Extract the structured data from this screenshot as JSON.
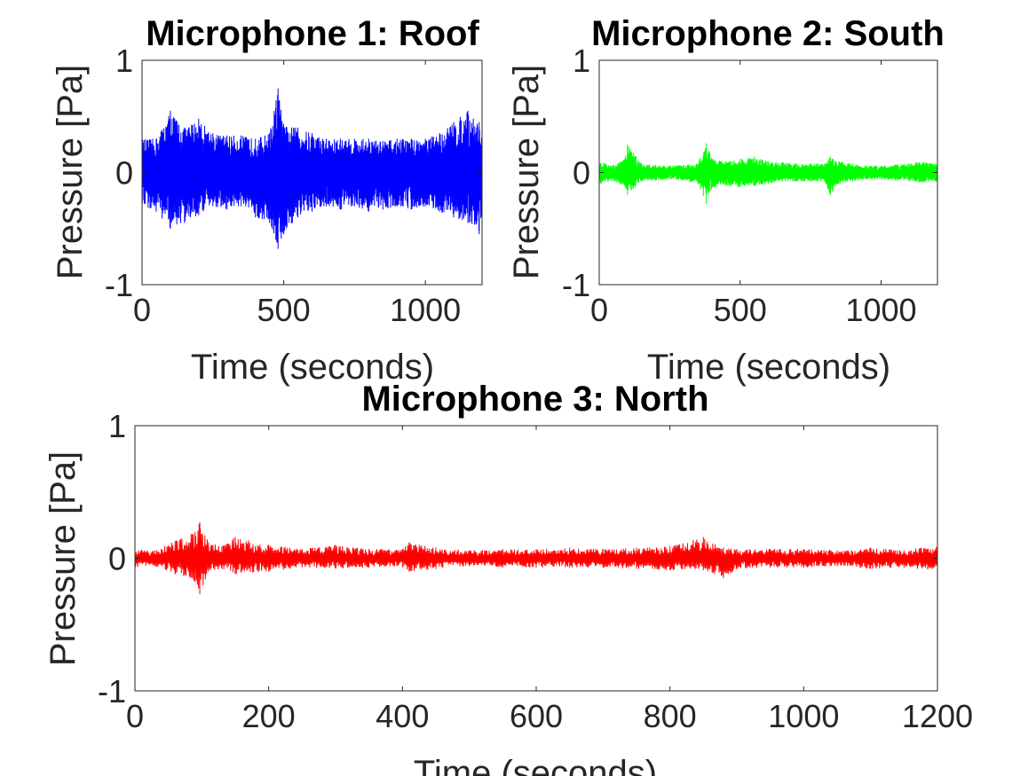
{
  "chart_data": [
    {
      "type": "line",
      "title": "Microphone 1: Roof",
      "xlabel": "Time (seconds)",
      "ylabel": "Pressure [Pa]",
      "xlim": [
        0,
        1200
      ],
      "ylim": [
        -1,
        1
      ],
      "xticks": [
        0,
        500,
        1000
      ],
      "yticks": [
        -1,
        0,
        1
      ],
      "xtick_labels": [
        "0",
        "500",
        "1000"
      ],
      "ytick_labels": [
        "-1",
        "0",
        "1"
      ],
      "color": "#0000ff",
      "series": [
        {
          "x": [
            0,
            50,
            100,
            150,
            200,
            250,
            300,
            350,
            400,
            450,
            480,
            500,
            550,
            600,
            650,
            700,
            750,
            800,
            850,
            900,
            950,
            1000,
            1050,
            1100,
            1150,
            1190,
            1200
          ],
          "y_upper": [
            0.3,
            0.3,
            0.55,
            0.4,
            0.48,
            0.35,
            0.33,
            0.33,
            0.3,
            0.35,
            0.75,
            0.42,
            0.4,
            0.35,
            0.3,
            0.3,
            0.3,
            0.3,
            0.28,
            0.3,
            0.3,
            0.3,
            0.35,
            0.45,
            0.55,
            0.45,
            0.4
          ],
          "y_lower": [
            -0.3,
            -0.35,
            -0.5,
            -0.45,
            -0.38,
            -0.3,
            -0.33,
            -0.3,
            -0.4,
            -0.45,
            -0.68,
            -0.55,
            -0.4,
            -0.35,
            -0.3,
            -0.33,
            -0.3,
            -0.35,
            -0.33,
            -0.3,
            -0.33,
            -0.3,
            -0.35,
            -0.4,
            -0.45,
            -0.55,
            -0.4
          ]
        }
      ]
    },
    {
      "type": "line",
      "title": "Microphone 2: South",
      "xlabel": "Time (seconds)",
      "ylabel": "Pressure [Pa]",
      "xlim": [
        0,
        1200
      ],
      "ylim": [
        -1,
        1
      ],
      "xticks": [
        0,
        500,
        1000
      ],
      "yticks": [
        -1,
        0,
        1
      ],
      "xtick_labels": [
        "0",
        "500",
        "1000"
      ],
      "ytick_labels": [
        "-1",
        "0",
        "1"
      ],
      "color": "#00ff00",
      "series": [
        {
          "x": [
            0,
            50,
            90,
            100,
            150,
            200,
            250,
            300,
            350,
            380,
            400,
            450,
            500,
            550,
            600,
            650,
            700,
            750,
            800,
            820,
            850,
            900,
            950,
            1000,
            1050,
            1100,
            1150,
            1200
          ],
          "y_upper": [
            0.1,
            0.07,
            0.12,
            0.25,
            0.08,
            0.07,
            0.06,
            0.07,
            0.08,
            0.26,
            0.12,
            0.1,
            0.12,
            0.14,
            0.1,
            0.09,
            0.08,
            0.08,
            0.08,
            0.14,
            0.1,
            0.08,
            0.06,
            0.06,
            0.07,
            0.08,
            0.1,
            0.08
          ],
          "y_lower": [
            -0.1,
            -0.08,
            -0.12,
            -0.2,
            -0.08,
            -0.07,
            -0.06,
            -0.07,
            -0.1,
            -0.28,
            -0.14,
            -0.12,
            -0.13,
            -0.12,
            -0.1,
            -0.08,
            -0.08,
            -0.08,
            -0.08,
            -0.2,
            -0.1,
            -0.08,
            -0.06,
            -0.06,
            -0.07,
            -0.08,
            -0.09,
            -0.08
          ]
        }
      ]
    },
    {
      "type": "line",
      "title": "Microphone 3: North",
      "xlabel": "Time (seconds)",
      "ylabel": "Pressure [Pa]",
      "xlim": [
        0,
        1200
      ],
      "ylim": [
        -1,
        1
      ],
      "xticks": [
        0,
        200,
        400,
        600,
        800,
        1000,
        1200
      ],
      "yticks": [
        -1,
        0,
        1
      ],
      "xtick_labels": [
        "0",
        "200",
        "400",
        "600",
        "800",
        "1000",
        "1200"
      ],
      "ytick_labels": [
        "-1",
        "0",
        "1"
      ],
      "color": "#ff0000",
      "series": [
        {
          "x": [
            0,
            30,
            60,
            90,
            97,
            110,
            130,
            150,
            200,
            250,
            300,
            350,
            400,
            410,
            450,
            500,
            550,
            600,
            650,
            700,
            750,
            800,
            850,
            880,
            900,
            950,
            1000,
            1050,
            1100,
            1150,
            1200
          ],
          "y_upper": [
            0.07,
            0.06,
            0.13,
            0.2,
            0.27,
            0.12,
            0.09,
            0.16,
            0.1,
            0.07,
            0.1,
            0.07,
            0.07,
            0.12,
            0.08,
            0.06,
            0.07,
            0.07,
            0.08,
            0.07,
            0.08,
            0.09,
            0.16,
            0.08,
            0.07,
            0.07,
            0.07,
            0.06,
            0.08,
            0.06,
            0.1
          ],
          "y_lower": [
            -0.07,
            -0.06,
            -0.12,
            -0.18,
            -0.27,
            -0.1,
            -0.08,
            -0.12,
            -0.1,
            -0.07,
            -0.08,
            -0.07,
            -0.07,
            -0.1,
            -0.08,
            -0.06,
            -0.07,
            -0.07,
            -0.07,
            -0.07,
            -0.08,
            -0.09,
            -0.09,
            -0.15,
            -0.08,
            -0.07,
            -0.07,
            -0.06,
            -0.08,
            -0.07,
            -0.1
          ]
        }
      ]
    }
  ]
}
